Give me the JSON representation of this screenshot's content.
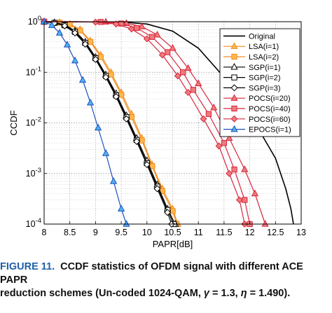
{
  "chart_data": {
    "type": "line",
    "xlabel": "PAPR[dB]",
    "ylabel": "CCDF",
    "xlim": [
      8,
      13
    ],
    "ylim": [
      0.0001,
      1
    ],
    "yscale": "log",
    "grid": true,
    "legend_position": "top-right",
    "x_ticks": [
      "8",
      "8.5",
      "9",
      "9.5",
      "10",
      "10.5",
      "11",
      "11.5",
      "12",
      "12.5",
      "13"
    ],
    "y_ticks": [
      {
        "value": 1,
        "base": "10",
        "exp": "0"
      },
      {
        "value": 0.1,
        "base": "10",
        "exp": "-1"
      },
      {
        "value": 0.01,
        "base": "10",
        "exp": "-2"
      },
      {
        "value": 0.001,
        "base": "10",
        "exp": "-3"
      },
      {
        "value": 0.0001,
        "base": "10",
        "exp": "-4"
      }
    ],
    "series": [
      {
        "name": "Original",
        "color": "#000000",
        "marker": "none",
        "fill": "none",
        "points": [
          [
            8,
            1
          ],
          [
            9,
            0.99
          ],
          [
            9.6,
            0.97
          ],
          [
            10,
            0.9
          ],
          [
            10.5,
            0.65
          ],
          [
            11,
            0.3
          ],
          [
            11.5,
            0.08
          ],
          [
            12,
            0.015
          ],
          [
            12.5,
            0.002
          ],
          [
            12.7,
            0.0005
          ],
          [
            12.8,
            0.0002
          ],
          [
            12.85,
            0.0001
          ]
        ]
      },
      {
        "name": "LSA(i=1)",
        "color": "#f28c1e",
        "marker": "triangle-up",
        "fill": "#ffb84d",
        "points": [
          [
            8,
            1
          ],
          [
            8.3,
            0.97
          ],
          [
            8.5,
            0.9
          ],
          [
            8.7,
            0.7
          ],
          [
            8.9,
            0.42
          ],
          [
            9.1,
            0.22
          ],
          [
            9.3,
            0.1
          ],
          [
            9.5,
            0.04
          ],
          [
            9.7,
            0.015
          ],
          [
            9.9,
            0.005
          ],
          [
            10.1,
            0.0015
          ],
          [
            10.3,
            0.0005
          ],
          [
            10.5,
            0.0002
          ],
          [
            10.6,
            0.0001
          ]
        ]
      },
      {
        "name": "LSA(i=2)",
        "color": "#f28c1e",
        "marker": "square",
        "fill": "#ffb84d",
        "points": [
          [
            8,
            1
          ],
          [
            8.3,
            0.96
          ],
          [
            8.5,
            0.88
          ],
          [
            8.7,
            0.67
          ],
          [
            8.9,
            0.4
          ],
          [
            9.1,
            0.2
          ],
          [
            9.3,
            0.09
          ],
          [
            9.5,
            0.036
          ],
          [
            9.7,
            0.013
          ],
          [
            9.9,
            0.0045
          ],
          [
            10.1,
            0.0014
          ],
          [
            10.3,
            0.00045
          ],
          [
            10.5,
            0.00018
          ],
          [
            10.58,
            0.0001
          ]
        ]
      },
      {
        "name": "SGP(i=1)",
        "color": "#000000",
        "marker": "triangle-up",
        "fill": "#ffffff",
        "points": [
          [
            8,
            1
          ],
          [
            8.2,
            0.96
          ],
          [
            8.4,
            0.87
          ],
          [
            8.6,
            0.66
          ],
          [
            8.8,
            0.4
          ],
          [
            9,
            0.2
          ],
          [
            9.2,
            0.09
          ],
          [
            9.4,
            0.038
          ],
          [
            9.6,
            0.014
          ],
          [
            9.8,
            0.005
          ],
          [
            10,
            0.0018
          ],
          [
            10.2,
            0.0006
          ],
          [
            10.4,
            0.0002
          ],
          [
            10.55,
            0.0001
          ]
        ]
      },
      {
        "name": "SGP(i=2)",
        "color": "#000000",
        "marker": "square",
        "fill": "#ffffff",
        "points": [
          [
            8,
            1
          ],
          [
            8.2,
            0.95
          ],
          [
            8.4,
            0.85
          ],
          [
            8.6,
            0.63
          ],
          [
            8.8,
            0.38
          ],
          [
            9,
            0.19
          ],
          [
            9.2,
            0.085
          ],
          [
            9.4,
            0.035
          ],
          [
            9.6,
            0.013
          ],
          [
            9.8,
            0.0046
          ],
          [
            10,
            0.0016
          ],
          [
            10.2,
            0.00055
          ],
          [
            10.4,
            0.00019
          ],
          [
            10.52,
            0.0001
          ]
        ]
      },
      {
        "name": "SGP(i=3)",
        "color": "#000000",
        "marker": "diamond",
        "fill": "#ffffff",
        "points": [
          [
            8,
            1
          ],
          [
            8.2,
            0.94
          ],
          [
            8.4,
            0.83
          ],
          [
            8.6,
            0.6
          ],
          [
            8.8,
            0.36
          ],
          [
            9,
            0.18
          ],
          [
            9.2,
            0.08
          ],
          [
            9.4,
            0.033
          ],
          [
            9.6,
            0.012
          ],
          [
            9.8,
            0.0043
          ],
          [
            10,
            0.0015
          ],
          [
            10.2,
            0.0005
          ],
          [
            10.4,
            0.00017
          ],
          [
            10.48,
            0.0001
          ]
        ]
      },
      {
        "name": "POCS(i=20)",
        "color": "#d7263d",
        "marker": "triangle-up",
        "fill": "#ee7b7b",
        "points": [
          [
            8,
            1
          ],
          [
            8.6,
            1
          ],
          [
            9.2,
            0.99
          ],
          [
            9.6,
            0.93
          ],
          [
            9.9,
            0.8
          ],
          [
            10.2,
            0.55
          ],
          [
            10.5,
            0.3
          ],
          [
            10.8,
            0.12
          ],
          [
            11,
            0.06
          ],
          [
            11.3,
            0.02
          ],
          [
            11.6,
            0.005
          ],
          [
            11.9,
            0.0012
          ],
          [
            12.1,
            0.0004
          ],
          [
            12.3,
            0.0001
          ]
        ]
      },
      {
        "name": "POCS(i=40)",
        "color": "#d7263d",
        "marker": "square",
        "fill": "#ee7b7b",
        "points": [
          [
            8,
            1
          ],
          [
            8.6,
            1
          ],
          [
            9.1,
            0.99
          ],
          [
            9.5,
            0.92
          ],
          [
            9.8,
            0.75
          ],
          [
            10.1,
            0.5
          ],
          [
            10.4,
            0.25
          ],
          [
            10.7,
            0.1
          ],
          [
            10.9,
            0.045
          ],
          [
            11.2,
            0.015
          ],
          [
            11.5,
            0.004
          ],
          [
            11.7,
            0.0012
          ],
          [
            11.9,
            0.0003
          ],
          [
            12,
            0.0001
          ]
        ]
      },
      {
        "name": "POCS(i=60)",
        "color": "#d7263d",
        "marker": "diamond",
        "fill": "#ee7b7b",
        "points": [
          [
            8,
            1
          ],
          [
            8.6,
            1
          ],
          [
            9,
            0.98
          ],
          [
            9.4,
            0.9
          ],
          [
            9.7,
            0.72
          ],
          [
            10,
            0.46
          ],
          [
            10.3,
            0.22
          ],
          [
            10.6,
            0.085
          ],
          [
            10.8,
            0.04
          ],
          [
            11.1,
            0.012
          ],
          [
            11.4,
            0.0035
          ],
          [
            11.6,
            0.001
          ],
          [
            11.8,
            0.0003
          ],
          [
            11.9,
            0.0001
          ]
        ]
      },
      {
        "name": "EPOCS(i=1)",
        "color": "#1f4fbf",
        "marker": "triangle-up",
        "fill": "#4fb3f0",
        "points": [
          [
            8,
            1
          ],
          [
            8.15,
            0.85
          ],
          [
            8.3,
            0.6
          ],
          [
            8.45,
            0.35
          ],
          [
            8.6,
            0.17
          ],
          [
            8.75,
            0.07
          ],
          [
            8.9,
            0.025
          ],
          [
            9.05,
            0.008
          ],
          [
            9.2,
            0.0025
          ],
          [
            9.35,
            0.0007
          ],
          [
            9.5,
            0.0002
          ],
          [
            9.6,
            0.0001
          ]
        ]
      }
    ]
  },
  "caption": {
    "label": "FIGURE 11.",
    "text_line1": "CCDF statistics of OFDM signal with different ACE PAPR",
    "text_line2_a": "reduction schemes (Un-coded 1024-QAM, ",
    "gamma_symbol": "γ",
    "text_line2_b": " = 1.3, ",
    "eta_symbol": "η",
    "text_line2_c": " = 1.490)."
  }
}
